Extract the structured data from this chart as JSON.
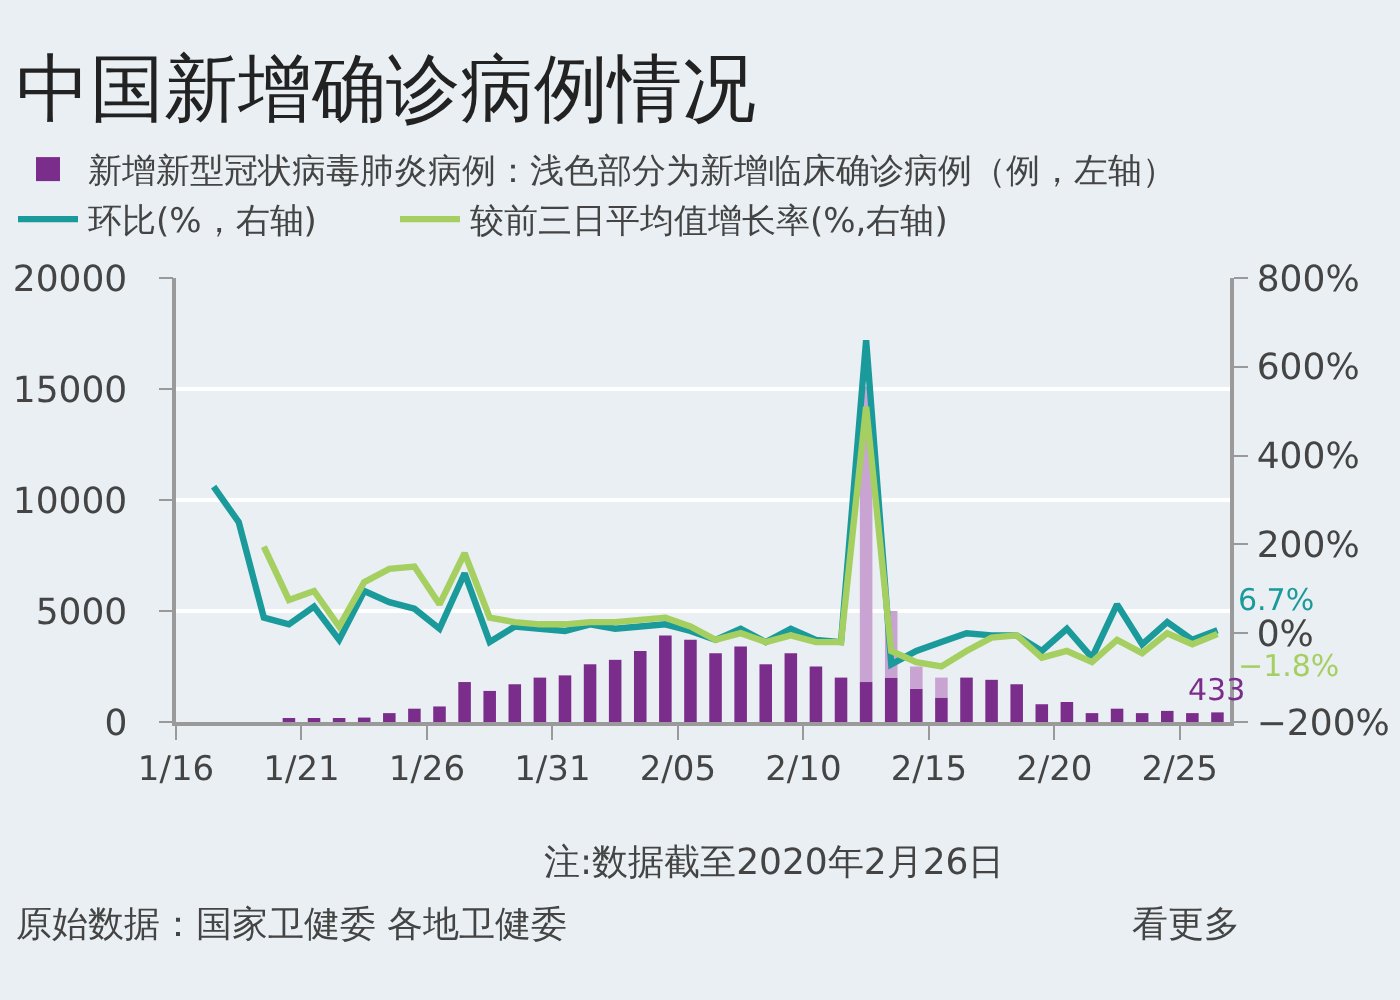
{
  "chart_data": {
    "type": "bar",
    "title": "中国新增确诊病例情况",
    "x": [
      "2020-01-17T12:00",
      "2020-01-18T12:00",
      "2020-01-19T12:00",
      "2020-01-20T12:00",
      "2020-01-21T12:00",
      "2020-01-22T12:00",
      "2020-01-23T12:00",
      "2020-01-24T12:00",
      "2020-01-25T12:00",
      "2020-01-26T12:00",
      "2020-01-27T12:00",
      "2020-01-28T12:00",
      "2020-01-29T12:00",
      "2020-01-30T12:00",
      "2020-01-31T12:00",
      "2020-02-01T12:00",
      "2020-02-02T12:00",
      "2020-02-03T12:00",
      "2020-02-04T12:00",
      "2020-02-05T12:00",
      "2020-02-06T12:00",
      "2020-02-07T12:00",
      "2020-02-08T12:00",
      "2020-02-09T12:00",
      "2020-02-10T12:00",
      "2020-02-11T12:00",
      "2020-02-12T12:00",
      "2020-02-13T12:00",
      "2020-02-14T12:00",
      "2020-02-15T12:00",
      "2020-02-16T12:00",
      "2020-02-17T12:00",
      "2020-02-18T12:00",
      "2020-02-19T12:00",
      "2020-02-20T12:00",
      "2020-02-21T12:00",
      "2020-02-22T12:00",
      "2020-02-23T12:00",
      "2020-02-24T12:00",
      "2020-02-25T12:00",
      "2020-02-26T12:00"
    ],
    "series": [
      {
        "name": "新增新型冠状病毒肺炎病例：浅色部分为新增临床确诊病例（例，左轴）",
        "color": "#7b2d8b",
        "values": [
          null,
          null,
          null,
          100,
          100,
          100,
          200,
          400,
          600,
          700,
          1800,
          1400,
          1700,
          2000,
          2100,
          2600,
          2800,
          3200,
          3900,
          3700,
          3100,
          3400,
          2600,
          3100,
          2500,
          2000,
          1800,
          2000,
          1500,
          1100,
          2000,
          1900,
          1700,
          800,
          900,
          400,
          600,
          400,
          500,
          400,
          433
        ],
        "value_labels": [
          null,
          null,
          null,
          null,
          null,
          null,
          null,
          null,
          null,
          null,
          null,
          null,
          null,
          null,
          null,
          null,
          null,
          null,
          null,
          null,
          null,
          null,
          null,
          null,
          null,
          null,
          null,
          null,
          null,
          null,
          null,
          null,
          null,
          null,
          null,
          null,
          null,
          null,
          null,
          null,
          "433"
        ]
      },
      {
        "color": "#c9a3d2",
        "values": [
          null,
          null,
          null,
          null,
          null,
          null,
          null,
          null,
          null,
          null,
          null,
          null,
          null,
          null,
          null,
          null,
          null,
          null,
          null,
          null,
          null,
          null,
          null,
          null,
          null,
          null,
          13300,
          3000,
          1000,
          900,
          null,
          null,
          null,
          null,
          null,
          null,
          null,
          null,
          null,
          null,
          null
        ],
        "base": [
          null,
          null,
          null,
          null,
          null,
          null,
          null,
          null,
          null,
          null,
          null,
          null,
          null,
          null,
          null,
          null,
          null,
          null,
          null,
          null,
          null,
          null,
          null,
          null,
          null,
          null,
          1800,
          2000,
          1500,
          1100,
          null,
          null,
          null,
          null,
          null,
          null,
          null,
          null,
          null,
          null,
          null
        ]
      },
      {
        "name": "环比(%，右轴)",
        "type": "line",
        "axis": "y2",
        "color": "#1a9a9a",
        "values": [
          330,
          250,
          35,
          20,
          60,
          -15,
          95,
          70,
          55,
          10,
          135,
          -20,
          15,
          10,
          5,
          20,
          10,
          15,
          20,
          5,
          -15,
          10,
          -20,
          10,
          -15,
          -20,
          660,
          -70,
          -40,
          -20,
          0,
          -5,
          -5,
          -40,
          10,
          -55,
          65,
          -25,
          25,
          -15,
          6.7
        ],
        "value_labels": [
          null,
          null,
          null,
          null,
          null,
          null,
          null,
          null,
          null,
          null,
          null,
          null,
          null,
          null,
          null,
          null,
          null,
          null,
          null,
          null,
          null,
          null,
          null,
          null,
          null,
          null,
          null,
          null,
          null,
          null,
          null,
          null,
          null,
          null,
          null,
          null,
          null,
          null,
          null,
          null,
          "6.7%"
        ]
      },
      {
        "name": "较前三日平均值增长率(%,右轴)",
        "type": "line",
        "axis": "y2",
        "color": "#a6cf62",
        "values": [
          null,
          null,
          195,
          75,
          95,
          15,
          115,
          145,
          150,
          65,
          180,
          35,
          25,
          20,
          20,
          25,
          25,
          30,
          35,
          15,
          -15,
          0,
          -20,
          -5,
          -20,
          -20,
          510,
          -40,
          -65,
          -75,
          -40,
          -10,
          -5,
          -55,
          -40,
          -65,
          -15,
          -45,
          0,
          -25,
          -1.8
        ],
        "value_labels": [
          null,
          null,
          null,
          null,
          null,
          null,
          null,
          null,
          null,
          null,
          null,
          null,
          null,
          null,
          null,
          null,
          null,
          null,
          null,
          null,
          null,
          null,
          null,
          null,
          null,
          null,
          null,
          null,
          null,
          null,
          null,
          null,
          null,
          null,
          null,
          null,
          null,
          null,
          null,
          null,
          "−1.8%"
        ]
      }
    ],
    "xlim": [
      "2020-01-16",
      "2020-02-27"
    ],
    "xticks": [
      {
        "value": "2020-01-16",
        "label": "1/16"
      },
      {
        "value": "2020-01-21",
        "label": "1/21"
      },
      {
        "value": "2020-01-26",
        "label": "1/26"
      },
      {
        "value": "2020-01-31",
        "label": "1/31"
      },
      {
        "value": "2020-02-05",
        "label": "2/05"
      },
      {
        "value": "2020-02-10",
        "label": "2/10"
      },
      {
        "value": "2020-02-15",
        "label": "2/15"
      },
      {
        "value": "2020-02-20",
        "label": "2/20"
      },
      {
        "value": "2020-02-25",
        "label": "2/25"
      }
    ],
    "ylim": [
      0,
      20000
    ],
    "yticks": [
      0,
      5000,
      10000,
      15000,
      20000
    ],
    "y2lim": [
      -200,
      800
    ],
    "y2ticks": [
      {
        "value": -200,
        "label": "−200%"
      },
      {
        "value": 0,
        "label": "0%"
      },
      {
        "value": 200,
        "label": "200%"
      },
      {
        "value": 400,
        "label": "400%"
      },
      {
        "value": 600,
        "label": "600%"
      },
      {
        "value": 800,
        "label": "800%"
      }
    ],
    "grid": "y",
    "legend": "top left",
    "annotations": [
      "注:数据截至2020年2月26日",
      "原始数据：国家卫健委 各地卫健委",
      "看更多"
    ]
  }
}
